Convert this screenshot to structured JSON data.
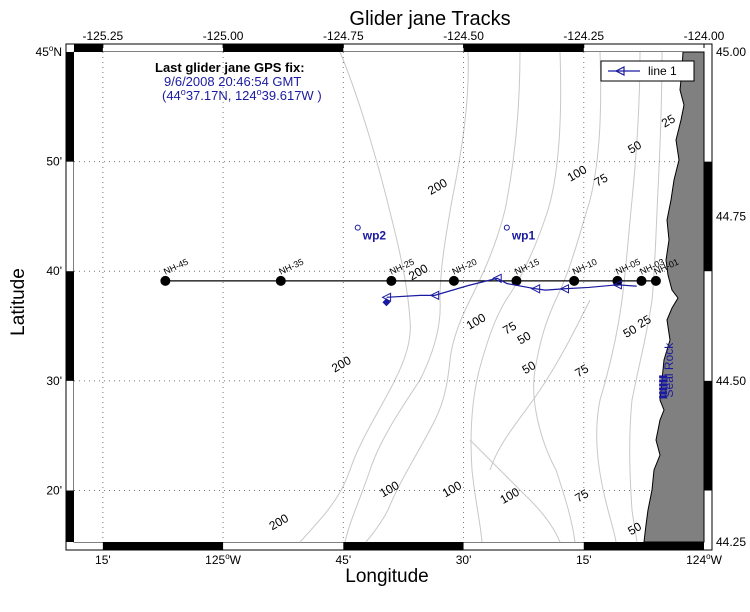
{
  "title": "Glider jane Tracks",
  "xlabel": "Longitude",
  "ylabel": "Latitude",
  "top_ticks": [
    "-125.25",
    "-125.00",
    "-124.75",
    "-124.50",
    "-124.25",
    "-124.00"
  ],
  "right_ticks": [
    "45.00",
    "44.75",
    "44.50",
    "44.25"
  ],
  "bottom_ticks": [
    {
      "main": "15'",
      "sup": ""
    },
    {
      "main": "125",
      "sup": "o",
      "suffix": "W"
    },
    {
      "main": "45'",
      "sup": ""
    },
    {
      "main": "30'",
      "sup": ""
    },
    {
      "main": "15'",
      "sup": ""
    },
    {
      "main": "124",
      "sup": "o",
      "suffix": "W"
    }
  ],
  "left_ticks": [
    {
      "main": "45",
      "sup": "o",
      "suffix": "N"
    },
    {
      "main": "50'",
      "sup": ""
    },
    {
      "main": "40'",
      "sup": ""
    },
    {
      "main": "30'",
      "sup": ""
    },
    {
      "main": "20'",
      "sup": ""
    }
  ],
  "fix": {
    "heading": "Last glider jane GPS fix:",
    "datetime": "9/6/2008 20:46:54 GMT",
    "coords_prefix": "(44",
    "coords_deg": "o",
    "coords_mid": "37.17N, 124",
    "coords_deg2": "o",
    "coords_end": "39.617W )"
  },
  "legend": {
    "label": "line 1"
  },
  "colors": {
    "track": "#1a1aa0",
    "land": "#808080",
    "contour": "#c8c8c8",
    "grid": "#666666",
    "line": "#000000"
  },
  "map_data": {
    "lon_range": [
      -125.31,
      -124.0
    ],
    "lat_range": [
      44.255,
      45.0
    ],
    "stations": [
      {
        "name": "NH-45",
        "lon": -125.12
      },
      {
        "name": "NH-35",
        "lon": -124.88
      },
      {
        "name": "NH-25",
        "lon": -124.65
      },
      {
        "name": "NH-20",
        "lon": -124.52
      },
      {
        "name": "NH-15",
        "lon": -124.39
      },
      {
        "name": "NH-10",
        "lon": -124.27
      },
      {
        "name": "NH-05",
        "lon": -124.18
      },
      {
        "name": "NH-03",
        "lon": -124.13
      },
      {
        "name": "NH-01",
        "lon": -124.1
      }
    ],
    "station_lat": 44.652,
    "waypoints": [
      {
        "name": "wp1",
        "lon": -124.41,
        "lat": 44.733
      },
      {
        "name": "wp2",
        "lon": -124.72,
        "lat": 44.733
      }
    ],
    "track": [
      {
        "lon": -124.66,
        "lat": 44.627
      },
      {
        "lon": -124.59,
        "lat": 44.63
      },
      {
        "lon": -124.56,
        "lat": 44.63
      },
      {
        "lon": -124.49,
        "lat": 44.645
      },
      {
        "lon": -124.43,
        "lat": 44.656
      },
      {
        "lon": -124.41,
        "lat": 44.648
      },
      {
        "lon": -124.35,
        "lat": 44.64
      },
      {
        "lon": -124.33,
        "lat": 44.638
      },
      {
        "lon": -124.29,
        "lat": 44.64
      },
      {
        "lon": -124.24,
        "lat": 44.642
      },
      {
        "lon": -124.18,
        "lat": 44.646
      },
      {
        "lon": -124.14,
        "lat": 44.644
      }
    ],
    "last_fix": {
      "lon": -124.6603,
      "lat": 44.6195
    },
    "contour_labels": [
      {
        "text": "200",
        "lon": -124.55,
        "lat": 44.79
      },
      {
        "text": "100",
        "lon": -124.26,
        "lat": 44.81
      },
      {
        "text": "75",
        "lon": -124.21,
        "lat": 44.8
      },
      {
        "text": "50",
        "lon": -124.14,
        "lat": 44.85
      },
      {
        "text": "25",
        "lon": -124.07,
        "lat": 44.89
      },
      {
        "text": "200",
        "lon": -124.59,
        "lat": 44.66
      },
      {
        "text": "100",
        "lon": -124.47,
        "lat": 44.585
      },
      {
        "text": "75",
        "lon": -124.4,
        "lat": 44.575
      },
      {
        "text": "50",
        "lon": -124.37,
        "lat": 44.56
      },
      {
        "text": "50",
        "lon": -124.36,
        "lat": 44.515
      },
      {
        "text": "75",
        "lon": -124.25,
        "lat": 44.51
      },
      {
        "text": "50",
        "lon": -124.15,
        "lat": 44.57
      },
      {
        "text": "25",
        "lon": -124.12,
        "lat": 44.585
      },
      {
        "text": "200",
        "lon": -124.75,
        "lat": 44.52
      },
      {
        "text": "100",
        "lon": -124.65,
        "lat": 44.33
      },
      {
        "text": "100",
        "lon": -124.52,
        "lat": 44.33
      },
      {
        "text": "100",
        "lon": -124.4,
        "lat": 44.32
      },
      {
        "text": "75",
        "lon": -124.25,
        "lat": 44.32
      },
      {
        "text": "200",
        "lon": -124.88,
        "lat": 44.28
      },
      {
        "text": "50",
        "lon": -124.14,
        "lat": 44.27
      }
    ],
    "seal_rock": {
      "name": "Seal Rock",
      "lon": -124.085,
      "lat": 44.49
    }
  }
}
